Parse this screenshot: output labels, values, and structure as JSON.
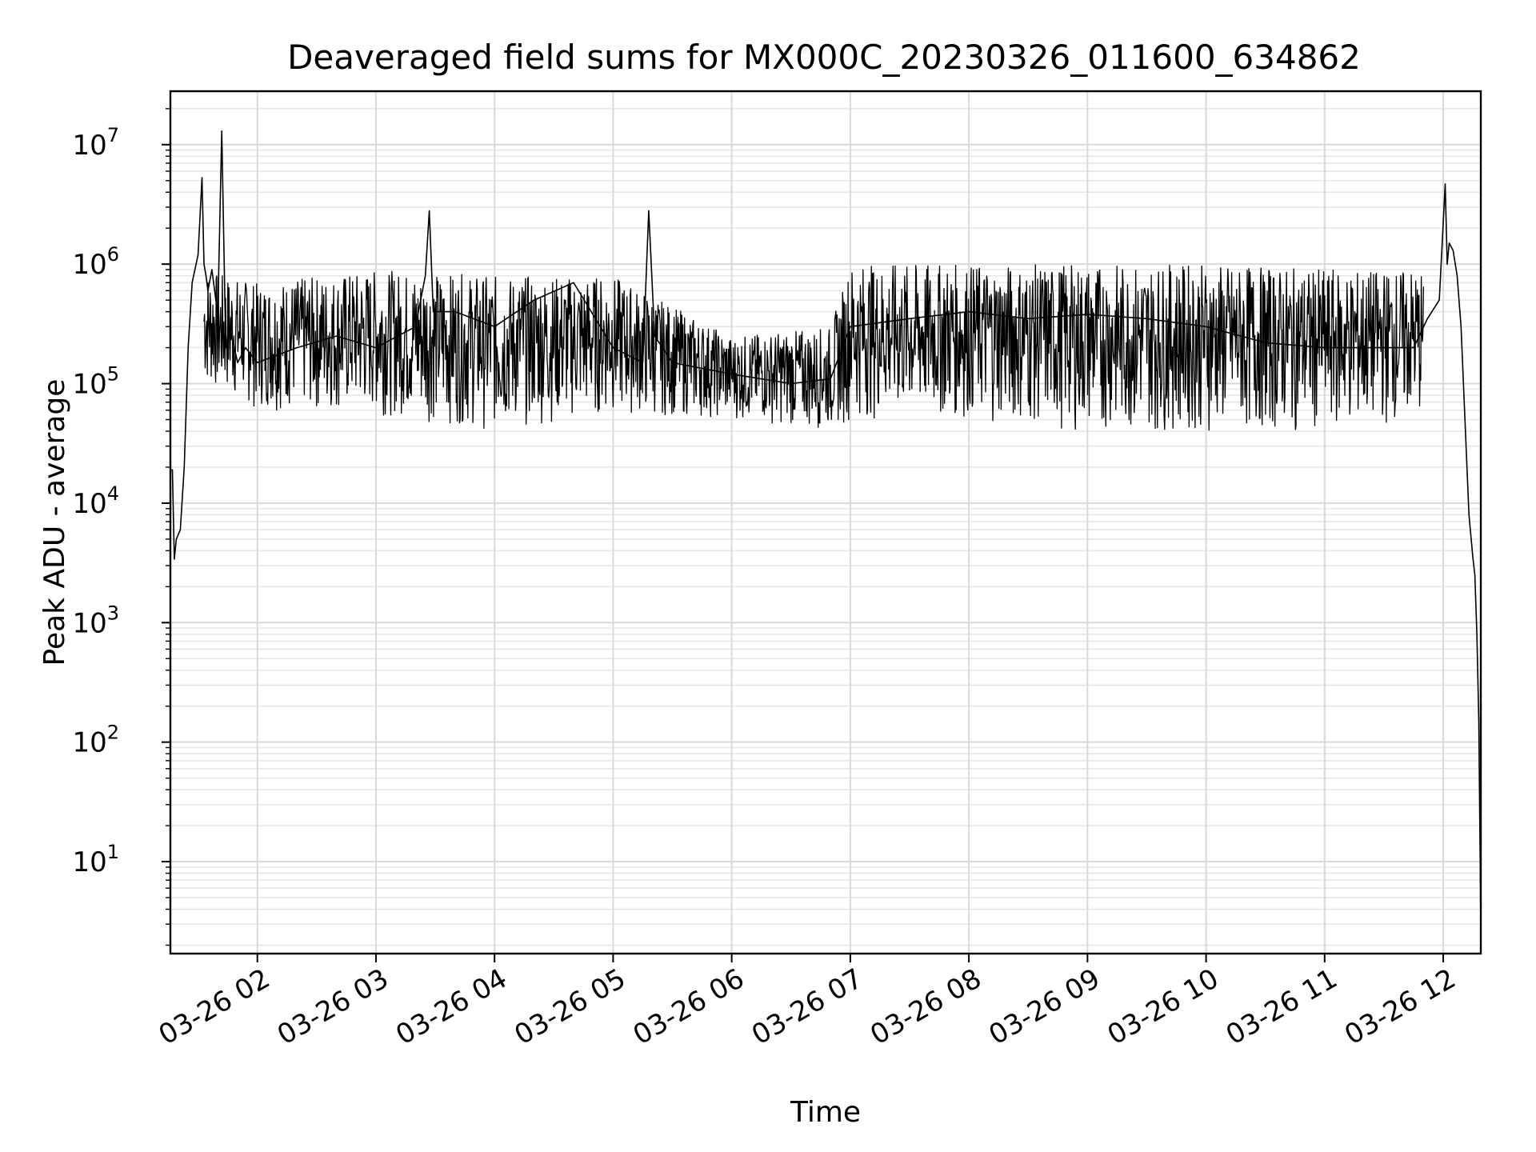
{
  "chart_data": {
    "type": "line",
    "title": "Deaveraged field sums for MX000C_20230326_011600_634862",
    "xlabel": "Time",
    "ylabel": "Peak ADU - average",
    "x_scale": "time",
    "y_scale": "log",
    "grid": true,
    "grid_minor": true,
    "legend": "none",
    "line_color": "#000000",
    "xlim": [
      "2023-03-26T01:16:00",
      "2023-03-26T12:19:00"
    ],
    "ylim": [
      1.7,
      28000000
    ],
    "x_ticks": [
      "2023-03-26T02:00",
      "2023-03-26T03:00",
      "2023-03-26T04:00",
      "2023-03-26T05:00",
      "2023-03-26T06:00",
      "2023-03-26T07:00",
      "2023-03-26T08:00",
      "2023-03-26T09:00",
      "2023-03-26T10:00",
      "2023-03-26T11:00",
      "2023-03-26T12:00"
    ],
    "x_tick_labels": [
      "03-26 02",
      "03-26 03",
      "03-26 04",
      "03-26 05",
      "03-26 06",
      "03-26 07",
      "03-26 08",
      "03-26 09",
      "03-26 10",
      "03-26 11",
      "03-26 12"
    ],
    "y_ticks": [
      10,
      100,
      1000,
      10000,
      100000,
      1000000,
      10000000
    ],
    "y_tick_base": "10",
    "y_tick_exponents": [
      "1",
      "2",
      "3",
      "4",
      "5",
      "6",
      "7"
    ],
    "series": [
      {
        "x": [
          "2023-03-26T01:16:00",
          "2023-03-26T01:17:00",
          "2023-03-26T01:18:00",
          "2023-03-26T01:19:00",
          "2023-03-26T01:21:00",
          "2023-03-26T01:23:00",
          "2023-03-26T01:25:00",
          "2023-03-26T01:27:00",
          "2023-03-26T01:29:00",
          "2023-03-26T01:30:00",
          "2023-03-26T01:32:00",
          "2023-03-26T01:33:00",
          "2023-03-26T01:34:00",
          "2023-03-26T01:35:00",
          "2023-03-26T01:37:00",
          "2023-03-26T01:39:00",
          "2023-03-26T01:40:00",
          "2023-03-26T01:42:00",
          "2023-03-26T01:44:00",
          "2023-03-26T01:46:00",
          "2023-03-26T01:50:00",
          "2023-03-26T01:54:00",
          "2023-03-26T02:00:00",
          "2023-03-26T02:20:00",
          "2023-03-26T02:40:00",
          "2023-03-26T03:00:00",
          "2023-03-26T03:20:00",
          "2023-03-26T03:25:00",
          "2023-03-26T03:27:00",
          "2023-03-26T03:29:00",
          "2023-03-26T03:40:00",
          "2023-03-26T04:00:00",
          "2023-03-26T04:20:00",
          "2023-03-26T04:40:00",
          "2023-03-26T05:00:00",
          "2023-03-26T05:15:00",
          "2023-03-26T05:18:00",
          "2023-03-26T05:21:00",
          "2023-03-26T05:30:00",
          "2023-03-26T06:00:00",
          "2023-03-26T06:30:00",
          "2023-03-26T06:50:00",
          "2023-03-26T07:00:00",
          "2023-03-26T07:30:00",
          "2023-03-26T08:00:00",
          "2023-03-26T08:30:00",
          "2023-03-26T09:00:00",
          "2023-03-26T09:30:00",
          "2023-03-26T10:00:00",
          "2023-03-26T10:30:00",
          "2023-03-26T11:00:00",
          "2023-03-26T11:30:00",
          "2023-03-26T11:45:00",
          "2023-03-26T11:52:00",
          "2023-03-26T11:58:00",
          "2023-03-26T12:01:00",
          "2023-03-26T12:02:00",
          "2023-03-26T12:03:00",
          "2023-03-26T12:05:00",
          "2023-03-26T12:07:00",
          "2023-03-26T12:09:00",
          "2023-03-26T12:11:00",
          "2023-03-26T12:13:00",
          "2023-03-26T12:15:00",
          "2023-03-26T12:16:00",
          "2023-03-26T12:17:00",
          "2023-03-26T12:18:00",
          "2023-03-26T12:19:00"
        ],
        "y": [
          19000,
          19000,
          3400,
          5000,
          6000,
          20000,
          200000,
          700000,
          1000000,
          1200000,
          5300000,
          1000000,
          800000,
          600000,
          900000,
          500000,
          400000,
          13000000,
          200000,
          300000,
          150000,
          200000,
          150000,
          200000,
          250000,
          200000,
          300000,
          800000,
          2800000,
          400000,
          400000,
          300000,
          500000,
          700000,
          200000,
          150000,
          2800000,
          250000,
          150000,
          120000,
          100000,
          110000,
          300000,
          350000,
          400000,
          350000,
          380000,
          350000,
          300000,
          220000,
          200000,
          200000,
          200000,
          350000,
          500000,
          4700000,
          1000000,
          1500000,
          1300000,
          800000,
          300000,
          50000,
          8000,
          3500,
          2500,
          800,
          150,
          3
        ]
      }
    ],
    "noise_band_lower_envelope": {
      "x": [
        "2023-03-26T01:33:00",
        "2023-03-26T02:00:00",
        "2023-03-26T03:00:00",
        "2023-03-26T04:00:00",
        "2023-03-26T05:00:00",
        "2023-03-26T06:00:00",
        "2023-03-26T06:50:00",
        "2023-03-26T07:00:00",
        "2023-03-26T08:00:00",
        "2023-03-26T09:00:00",
        "2023-03-26T10:00:00",
        "2023-03-26T11:00:00",
        "2023-03-26T11:50:00"
      ],
      "y": [
        90000,
        60000,
        55000,
        40000,
        55000,
        50000,
        40000,
        50000,
        50000,
        40000,
        40000,
        40000,
        50000
      ]
    },
    "noise_band_upper_envelope": {
      "x": [
        "2023-03-26T01:33:00",
        "2023-03-26T02:00:00",
        "2023-03-26T03:00:00",
        "2023-03-26T04:00:00",
        "2023-03-26T05:00:00",
        "2023-03-26T06:00:00",
        "2023-03-26T06:50:00",
        "2023-03-26T07:00:00",
        "2023-03-26T08:00:00",
        "2023-03-26T09:00:00",
        "2023-03-26T10:00:00",
        "2023-03-26T11:00:00",
        "2023-03-26T11:50:00"
      ],
      "y": [
        900000,
        700000,
        900000,
        800000,
        800000,
        250000,
        300000,
        1000000,
        1000000,
        1000000,
        1000000,
        900000,
        900000
      ]
    }
  }
}
